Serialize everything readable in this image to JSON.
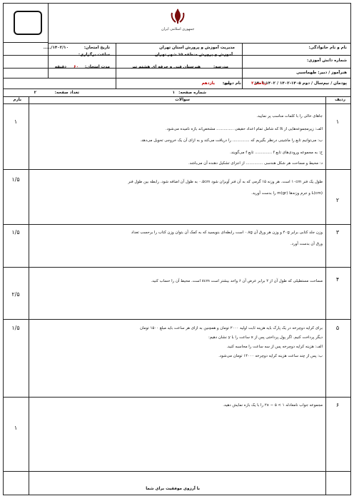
{
  "header": {
    "student_name_label": "نام و نام خانوادگی:",
    "seat_number_label": "شماره دانش آموزی:",
    "school_label": "مدرسه:",
    "school_name": "هنرستان فنی و حرفه ای هشتم تیر",
    "ministry_line1": "مدیریت آموزش و پرورش استان تهران",
    "ministry_line2": "آموزش و پرورش منطقه ۱۵ شهر تهران",
    "teacher_label": "هنرآموز / دبیر: طهماسبی",
    "grade_label": "پایه:",
    "grade_value": "یازدهم",
    "exam_date_label": "تاریخ امتحان:",
    "exam_date_value": "۱۴۰۲/۱۰/.....",
    "time_label": "ساعت برگزاری:",
    "duration_label": "مدت امتحان:",
    "duration_value": "۶۰",
    "duration_unit": "دقیقه",
    "term_line": "پودمان / نیم‌سال / دوم ۱۴۰۵-۱۴۰۲ / ۱۴۰۲-۱۴۰۳",
    "course_label": "نام درس:",
    "course_value": "ریاضی۲",
    "page_label": "شماره صفحه:",
    "page_value": "۱",
    "page_count_label": "تعداد صفحه:",
    "page_count_value": "۲",
    "emblem_caption": "جمهوری اسلامی ایران"
  },
  "table": {
    "col_row": "ردیف",
    "col_questions": "سوالات",
    "col_score": "بارم"
  },
  "questions": [
    {
      "number": "۱",
      "score": "۱",
      "lines": [
        "جاهای خالی را با کلمات مناسب پر نمایید.",
        "الف: زیرمجموعه‌هایی از ℝ که شامل تمام اعداد حقیقی .............. مشخص‌اند بازه نامیده می‌شود.",
        "ب: می‌توانیم تابع را ماشینی درنظر بگیریم که .............. را دریافت می‌کند و به ازای آن یک خروجی تحویل می‌دهد.",
        "ج: به مجموعه ورودی‌های تابع f .............. تابع f می‌گویند.",
        "د: محیط و مساحت هر شکل هندسی .............. از اجزای تشکیل دهنده آن می‌باشد."
      ]
    },
    {
      "number": "۲",
      "score": "۱/۵",
      "lines": [
        "طول یک فنر ۱۰cm است. هر وزنه ۱۵ گرمی که به آن فنر آویزان شود ۰.۵cm به طول آن اضافه شود. رابطه بین طول فنر",
        "L(cm) و جرم وزنه‌ها m(gr) را بدست آورید."
      ]
    },
    {
      "number": "۳",
      "score": "۱/۵",
      "lines": [
        "وزن جلد کتابی برابر ۴۰g و وزن هر ورق آن ۰.۸g است رابطه‌ای بنویسید که به کمک آن بتوان وزن کتاب را برحسب تعداد",
        "ورق آن بدست آورد."
      ]
    },
    {
      "number": "۴",
      "score": "۲/۵",
      "lines": [
        "مساحت مستطیلی که طول آن از ۲ برابر عرض آن ۶ واحد بیشتر است ۸cm است. محیط آن را حساب کنید."
      ]
    },
    {
      "number": "۵",
      "score": "۱/۵",
      "lines": [
        "برای کرایه دوچرخه در یک پارک باید هزینه ثابت اولیه ۲۰۰۰ تومان و همچنین به ازای هر ساعت باید مبلغ ۱۵۰۰ تومان",
        "دیگر پرداخت کنیم. اگر پول پرداختی پس از x ساعت را با y نشان دهیم:",
        "الف: هزینه کرایه دوچرخه پس از سه ساعت را محاسبه کنید.",
        "ب: پس از چند ساعت هزینه کرایه دوچرخه ۱۴۰۰۰ تومان می‌شود."
      ]
    },
    {
      "number": "۶",
      "score": "۱",
      "lines": [
        "مجموعه جواب نامعادله ۱ > ۵ − ۲x را با یک بازه نمایش دهید."
      ]
    }
  ],
  "footer": "با آرزوی موفقیت برای شما"
}
